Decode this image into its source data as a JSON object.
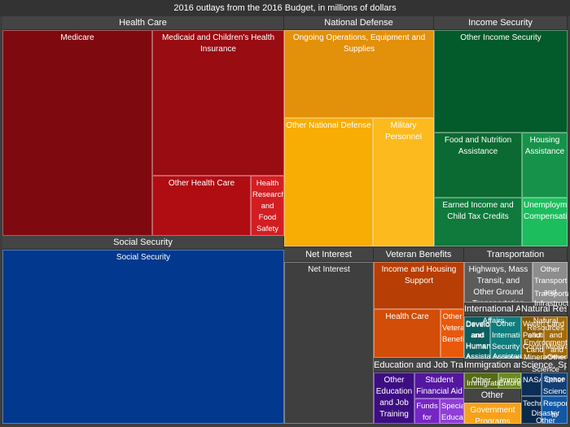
{
  "chart_data": {
    "type": "treemap",
    "title": "2016 outlays from the 2016 Budget, in millions of dollars",
    "groups": [
      {
        "name": "Health Care",
        "items": [
          {
            "label": "Medicare",
            "value": 590000,
            "color": "#7e0a0f"
          },
          {
            "label": "Medicaid and Children's Health Insurance",
            "value": 380000,
            "color": "#980c12"
          },
          {
            "label": "Other Health Care",
            "value": 135000,
            "color": "#b00d13"
          },
          {
            "label": "Health Research and Food Safety",
            "value": 40000,
            "color": "#d21e23"
          }
        ]
      },
      {
        "name": "Social Security",
        "items": [
          {
            "label": "Social Security",
            "value": 930000,
            "color": "#02388e"
          }
        ]
      },
      {
        "name": "National Defense",
        "items": [
          {
            "label": "Ongoing Operations, Equipment and Supplies",
            "value": 330000,
            "color": "#e3900a"
          },
          {
            "label": "Other National Defense",
            "value": 150000,
            "color": "#f7ad04"
          },
          {
            "label": "Military Personnel",
            "value": 135000,
            "color": "#fcba1e"
          }
        ]
      },
      {
        "name": "Income Security",
        "items": [
          {
            "label": "Other Income Security",
            "value": 230000,
            "color": "#035a2a"
          },
          {
            "label": "Food and Nutrition Assistance",
            "value": 110000,
            "color": "#0b6a31"
          },
          {
            "label": "Housing Assistance",
            "value": 57000,
            "color": "#17924a"
          },
          {
            "label": "Earned Income and Child Tax Credits",
            "value": 84000,
            "color": "#0f7a3c"
          },
          {
            "label": "Unemployment Compensation",
            "value": 42000,
            "color": "#1cbd5c"
          }
        ]
      },
      {
        "name": "Net Interest",
        "items": [
          {
            "label": "Net Interest",
            "value": 250000,
            "color": "#3f3f3f"
          }
        ]
      },
      {
        "name": "Veteran Benefits",
        "items": [
          {
            "label": "Income and Housing Support",
            "value": 85000,
            "color": "#b73e04"
          },
          {
            "label": "Health Care",
            "value": 63000,
            "color": "#d14d08"
          },
          {
            "label": "Other Veteran Benefits",
            "value": 22000,
            "color": "#e8590c"
          }
        ]
      },
      {
        "name": "Transportation",
        "items": [
          {
            "label": "Highways, Mass Transit, and Other Ground Transportation",
            "value": 75000,
            "color": "#5c5c5c"
          },
          {
            "label": "Other Transportation and Infrastructure",
            "value": 30000,
            "color": "#8d8d8d"
          }
        ]
      },
      {
        "name": "International Affairs",
        "items": [
          {
            "label": "Development and Humanitarian Assistance",
            "value": 25000,
            "color": "#0b5f5f"
          },
          {
            "label": "Other International Security Assistance",
            "value": 20000,
            "color": "#0f7d7d"
          }
        ]
      },
      {
        "name": "Natural Resources and Environment",
        "items": [
          {
            "label": "Water Pollution Control",
            "value": 14000,
            "color": "#8a5a00"
          },
          {
            "label": "Land and Mineral Other",
            "value": 12000,
            "color": "#a36c0b"
          }
        ]
      },
      {
        "name": "Education and Job Training",
        "items": [
          {
            "label": "Other Education and Job Training",
            "value": 60000,
            "color": "#3d0e82"
          },
          {
            "label": "Student Financial Aid",
            "value": 30000,
            "color": "#54179f"
          },
          {
            "label": "Funds for",
            "value": 16000,
            "color": "#7626c4"
          },
          {
            "label": "Special Education",
            "value": 13000,
            "color": "#8f3fd6"
          }
        ]
      },
      {
        "name": "Immigration and Law Enforcement",
        "items": [
          {
            "label": "Other Federal Law Enforcement",
            "value": 22000,
            "color": "#556b14"
          },
          {
            "label": "Immigration and Border",
            "value": 16000,
            "color": "#6b8a1f"
          }
        ]
      },
      {
        "name": "Other",
        "items": [
          {
            "label": "Government Programs",
            "value": 15000,
            "color": "#f7a21b"
          }
        ]
      },
      {
        "name": "Science, Space",
        "items": [
          {
            "label": "NASA",
            "value": 18000,
            "color": "#0b2e57"
          },
          {
            "label": "Other Science",
            "value": 10000,
            "color": "#123f75"
          },
          {
            "label": "Technology",
            "value": 8000,
            "color": "#0a2a4c"
          },
          {
            "label": "Response to Natural",
            "value": 8000,
            "color": "#1157a3"
          }
        ]
      }
    ],
    "text_overlays": [
      "Transportation",
      "Infrastructure",
      "Develop",
      "and",
      "Human",
      "Assistance",
      "Assistan",
      "Affairs",
      "Natural",
      "Resources",
      "and",
      "Environment",
      "Land",
      "and",
      "Mineral",
      "Other",
      "Enforcement",
      "Immigration and",
      "Science",
      "Space",
      "Disaster",
      "Other"
    ]
  }
}
